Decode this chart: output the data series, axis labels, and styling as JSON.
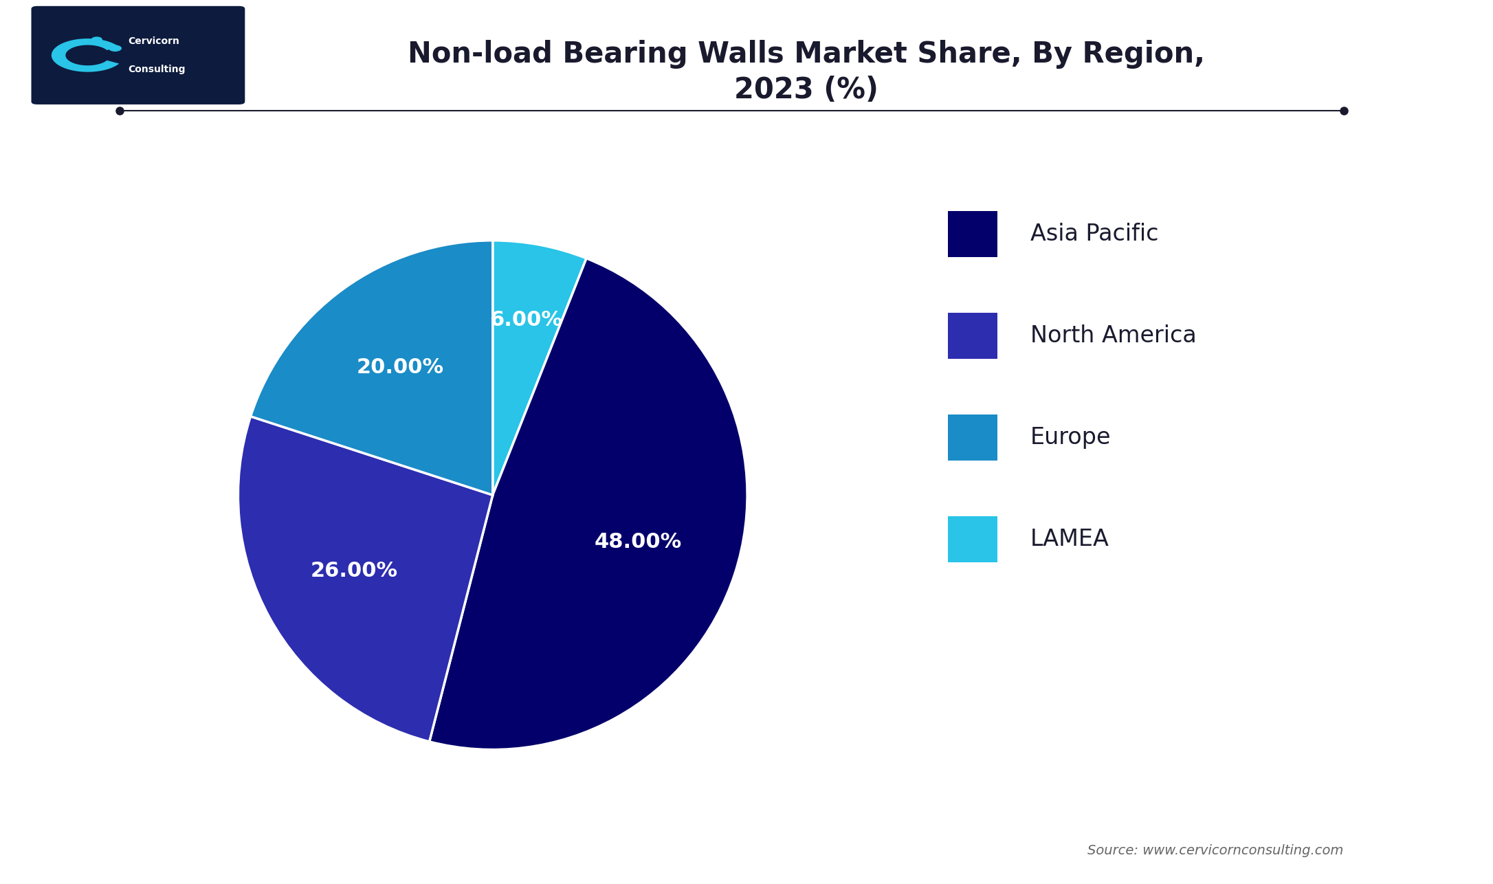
{
  "title": "Non-load Bearing Walls Market Share, By Region,\n2023 (%)",
  "slices": [
    48.0,
    26.0,
    20.0,
    6.0
  ],
  "labels": [
    "48.00%",
    "26.00%",
    "20.00%",
    "6.00%"
  ],
  "legend_labels": [
    "Asia Pacific",
    "North America",
    "Europe",
    "LAMEA"
  ],
  "colors": [
    "#04006b",
    "#2d2db0",
    "#1a8cc7",
    "#29c4e8"
  ],
  "startangle": 90,
  "source_text": "Source: www.cervicornconsulting.com",
  "background_color": "#ffffff",
  "title_fontsize": 30,
  "label_fontsize": 22,
  "legend_fontsize": 24
}
